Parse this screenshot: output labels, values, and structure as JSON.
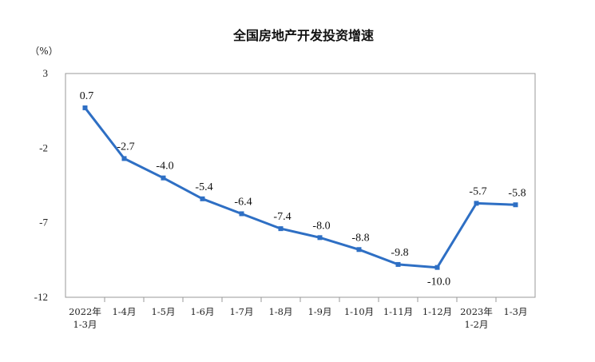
{
  "chart_data": {
    "type": "line",
    "title": "全国房地产开发投资增速",
    "ylabel": "（%）",
    "xlabel": "",
    "ylim": [
      -12,
      3
    ],
    "yticks": [
      3,
      -2,
      -7,
      -12
    ],
    "grid": false,
    "legend": "none",
    "categories": [
      [
        "2022年",
        "1-3月"
      ],
      [
        "1-4月"
      ],
      [
        "1-5月"
      ],
      [
        "1-6月"
      ],
      [
        "1-7月"
      ],
      [
        "1-8月"
      ],
      [
        "1-9月"
      ],
      [
        "1-10月"
      ],
      [
        "1-11月"
      ],
      [
        "1-12月"
      ],
      [
        "2023年",
        "1-2月"
      ],
      [
        "1-3月"
      ]
    ],
    "series": [
      {
        "values": [
          0.7,
          -2.7,
          -4.0,
          -5.4,
          -6.4,
          -7.4,
          -8.0,
          -8.8,
          -9.8,
          -10.0,
          -5.7,
          -5.8
        ],
        "labels": [
          "0.7",
          "-2.7",
          "-4.0",
          "-5.4",
          "-6.4",
          "-7.4",
          "-8.0",
          "-8.8",
          "-9.8",
          "-10.0",
          "-5.7",
          "-5.8"
        ],
        "color": "#2e6fc4"
      }
    ]
  }
}
